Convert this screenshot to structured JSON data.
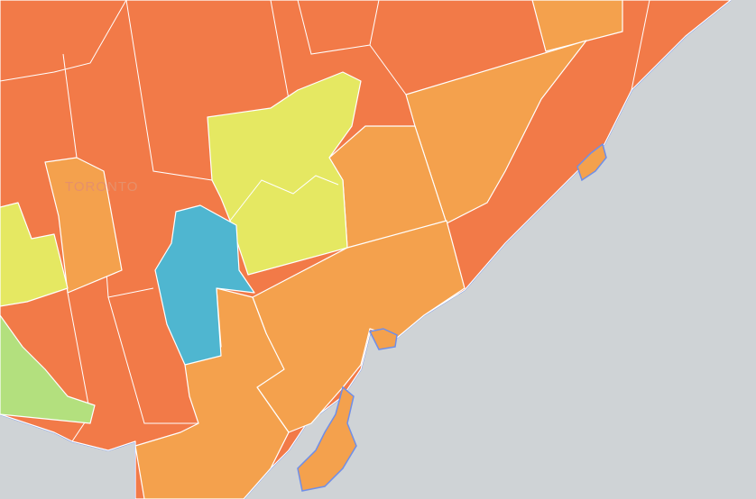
{
  "map": {
    "label": "TORONTO"
  }
}
